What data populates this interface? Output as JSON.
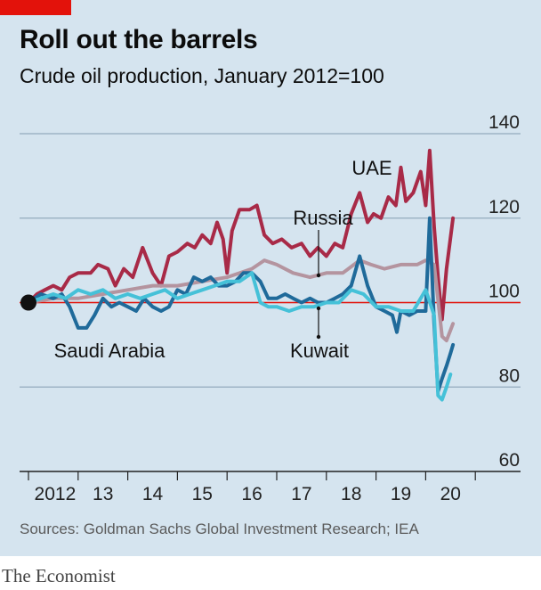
{
  "header": {
    "title": "Roll out the barrels",
    "subtitle": "Crude oil production, January 2012=100"
  },
  "footer": {
    "source": "Sources: Goldman Sachs Global Investment Research; IEA",
    "brand": "The Economist"
  },
  "colors": {
    "background": "#d5e4ef",
    "gridline": "#93abbd",
    "baseline": "#e3120b",
    "UAE": "#a82a47",
    "Russia": "#b4949f",
    "Saudi Arabia": "#1f6a9a",
    "Kuwait": "#45c1d8"
  },
  "chart_data": {
    "type": "line",
    "x_unit": "year (decimal)",
    "xlim": [
      2012,
      2020.9
    ],
    "ylim": [
      60,
      140
    ],
    "yticks": [
      60,
      80,
      100,
      120,
      140
    ],
    "xtick_labels": [
      "2012",
      "13",
      "14",
      "15",
      "16",
      "17",
      "18",
      "19",
      "20"
    ],
    "reference_line": 100,
    "grid": true,
    "start_marker": [
      2012,
      100
    ],
    "series": [
      {
        "name": "UAE",
        "points": [
          [
            2012.0,
            100
          ],
          [
            2012.17,
            102
          ],
          [
            2012.33,
            103
          ],
          [
            2012.5,
            104
          ],
          [
            2012.67,
            103
          ],
          [
            2012.83,
            106
          ],
          [
            2013.0,
            107
          ],
          [
            2013.25,
            107
          ],
          [
            2013.4,
            109
          ],
          [
            2013.6,
            108
          ],
          [
            2013.75,
            104
          ],
          [
            2013.92,
            108
          ],
          [
            2014.1,
            106
          ],
          [
            2014.3,
            113
          ],
          [
            2014.5,
            107
          ],
          [
            2014.67,
            104
          ],
          [
            2014.83,
            111
          ],
          [
            2015.0,
            112
          ],
          [
            2015.2,
            114
          ],
          [
            2015.35,
            113
          ],
          [
            2015.5,
            116
          ],
          [
            2015.67,
            114
          ],
          [
            2015.8,
            119
          ],
          [
            2015.92,
            115
          ],
          [
            2016.0,
            107
          ],
          [
            2016.1,
            117
          ],
          [
            2016.25,
            122
          ],
          [
            2016.45,
            122
          ],
          [
            2016.6,
            123
          ],
          [
            2016.75,
            116
          ],
          [
            2016.92,
            114
          ],
          [
            2017.1,
            115
          ],
          [
            2017.3,
            113
          ],
          [
            2017.5,
            114
          ],
          [
            2017.67,
            111
          ],
          [
            2017.83,
            113
          ],
          [
            2018.0,
            111
          ],
          [
            2018.17,
            114
          ],
          [
            2018.33,
            113
          ],
          [
            2018.5,
            121
          ],
          [
            2018.67,
            126
          ],
          [
            2018.83,
            119
          ],
          [
            2018.95,
            121
          ],
          [
            2019.1,
            120
          ],
          [
            2019.25,
            125
          ],
          [
            2019.4,
            123
          ],
          [
            2019.5,
            132
          ],
          [
            2019.6,
            124
          ],
          [
            2019.75,
            126
          ],
          [
            2019.9,
            131
          ],
          [
            2020.0,
            123
          ],
          [
            2020.08,
            136
          ],
          [
            2020.17,
            118
          ],
          [
            2020.25,
            106
          ],
          [
            2020.33,
            96
          ],
          [
            2020.42,
            108
          ],
          [
            2020.55,
            120
          ]
        ]
      },
      {
        "name": "Russia",
        "points": [
          [
            2012.0,
            100
          ],
          [
            2012.5,
            101
          ],
          [
            2013.0,
            101
          ],
          [
            2013.5,
            102
          ],
          [
            2014.0,
            103
          ],
          [
            2014.5,
            104
          ],
          [
            2015.0,
            104
          ],
          [
            2015.5,
            105
          ],
          [
            2016.0,
            106
          ],
          [
            2016.5,
            108
          ],
          [
            2016.75,
            110
          ],
          [
            2017.0,
            109
          ],
          [
            2017.33,
            107
          ],
          [
            2017.67,
            106
          ],
          [
            2018.0,
            107
          ],
          [
            2018.33,
            107
          ],
          [
            2018.67,
            110
          ],
          [
            2018.9,
            109
          ],
          [
            2019.17,
            108
          ],
          [
            2019.5,
            109
          ],
          [
            2019.83,
            109
          ],
          [
            2020.0,
            110
          ],
          [
            2020.17,
            109
          ],
          [
            2020.33,
            92
          ],
          [
            2020.42,
            91
          ],
          [
            2020.55,
            95
          ]
        ]
      },
      {
        "name": "Saudi Arabia",
        "points": [
          [
            2012.0,
            100
          ],
          [
            2012.25,
            102
          ],
          [
            2012.5,
            101
          ],
          [
            2012.67,
            102
          ],
          [
            2012.83,
            99
          ],
          [
            2013.0,
            94
          ],
          [
            2013.17,
            94
          ],
          [
            2013.33,
            97
          ],
          [
            2013.5,
            101
          ],
          [
            2013.67,
            99
          ],
          [
            2013.83,
            100
          ],
          [
            2014.0,
            99
          ],
          [
            2014.17,
            98
          ],
          [
            2014.33,
            101
          ],
          [
            2014.5,
            99
          ],
          [
            2014.67,
            98
          ],
          [
            2014.83,
            99
          ],
          [
            2015.0,
            103
          ],
          [
            2015.17,
            102
          ],
          [
            2015.33,
            106
          ],
          [
            2015.5,
            105
          ],
          [
            2015.67,
            106
          ],
          [
            2015.83,
            104
          ],
          [
            2016.0,
            104
          ],
          [
            2016.17,
            105
          ],
          [
            2016.33,
            107
          ],
          [
            2016.5,
            107
          ],
          [
            2016.67,
            105
          ],
          [
            2016.83,
            101
          ],
          [
            2017.0,
            101
          ],
          [
            2017.17,
            102
          ],
          [
            2017.33,
            101
          ],
          [
            2017.5,
            100
          ],
          [
            2017.67,
            101
          ],
          [
            2017.83,
            100
          ],
          [
            2018.0,
            100
          ],
          [
            2018.17,
            101
          ],
          [
            2018.33,
            102
          ],
          [
            2018.5,
            104
          ],
          [
            2018.67,
            111
          ],
          [
            2018.83,
            104
          ],
          [
            2019.0,
            99
          ],
          [
            2019.17,
            98
          ],
          [
            2019.33,
            97
          ],
          [
            2019.42,
            93
          ],
          [
            2019.5,
            98
          ],
          [
            2019.67,
            97
          ],
          [
            2019.83,
            98
          ],
          [
            2020.0,
            98
          ],
          [
            2020.08,
            120
          ],
          [
            2020.17,
            95
          ],
          [
            2020.25,
            79
          ],
          [
            2020.33,
            82
          ],
          [
            2020.42,
            85
          ],
          [
            2020.5,
            88
          ],
          [
            2020.55,
            90
          ]
        ]
      },
      {
        "name": "Kuwait",
        "points": [
          [
            2012.0,
            100
          ],
          [
            2012.25,
            101
          ],
          [
            2012.5,
            102
          ],
          [
            2012.75,
            101
          ],
          [
            2013.0,
            103
          ],
          [
            2013.25,
            102
          ],
          [
            2013.5,
            103
          ],
          [
            2013.75,
            101
          ],
          [
            2014.0,
            102
          ],
          [
            2014.25,
            101
          ],
          [
            2014.5,
            102
          ],
          [
            2014.75,
            103
          ],
          [
            2015.0,
            101
          ],
          [
            2015.25,
            102
          ],
          [
            2015.5,
            103
          ],
          [
            2015.75,
            104
          ],
          [
            2016.0,
            105
          ],
          [
            2016.25,
            105
          ],
          [
            2016.5,
            107
          ],
          [
            2016.67,
            100
          ],
          [
            2016.83,
            99
          ],
          [
            2017.0,
            99
          ],
          [
            2017.25,
            98
          ],
          [
            2017.5,
            99
          ],
          [
            2017.75,
            99
          ],
          [
            2018.0,
            100
          ],
          [
            2018.25,
            100
          ],
          [
            2018.5,
            103
          ],
          [
            2018.75,
            102
          ],
          [
            2019.0,
            99
          ],
          [
            2019.25,
            99
          ],
          [
            2019.5,
            98
          ],
          [
            2019.75,
            98
          ],
          [
            2020.0,
            103
          ],
          [
            2020.17,
            97
          ],
          [
            2020.25,
            78
          ],
          [
            2020.33,
            77
          ],
          [
            2020.42,
            80
          ],
          [
            2020.5,
            83
          ]
        ]
      }
    ],
    "labels": [
      {
        "text": "UAE",
        "series": "UAE"
      },
      {
        "text": "Russia",
        "series": "Russia"
      },
      {
        "text": "Saudi Arabia",
        "series": "Saudi Arabia"
      },
      {
        "text": "Kuwait",
        "series": "Kuwait"
      }
    ]
  }
}
